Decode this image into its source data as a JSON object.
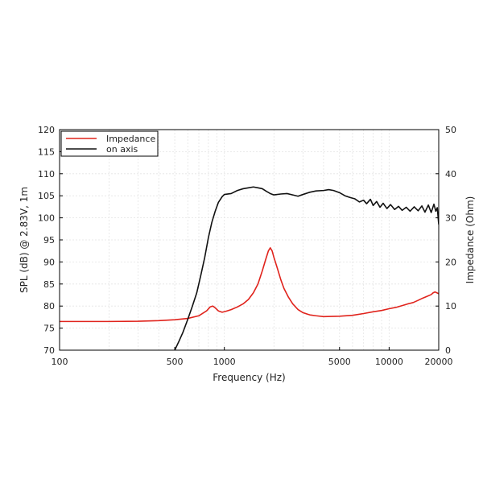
{
  "chart_data": {
    "type": "line",
    "xlabel": "Frequency (Hz)",
    "ylabel": "SPL (dB) @ 2.83V, 1m",
    "y2label": "Impedance (Ohm)",
    "xscale": "log",
    "xlim": [
      100,
      20000
    ],
    "ylim": [
      70,
      120
    ],
    "y2lim": [
      0,
      50
    ],
    "grid": true,
    "legend_position": "top-left",
    "xticks": [
      {
        "value": 100,
        "label": "100"
      },
      {
        "value": 500,
        "label": "500"
      },
      {
        "value": 1000,
        "label": "1000"
      },
      {
        "value": 5000,
        "label": "5000"
      },
      {
        "value": 10000,
        "label": "10000"
      },
      {
        "value": 20000,
        "label": "20000"
      }
    ],
    "yticks": [
      {
        "value": 70,
        "label": "70"
      },
      {
        "value": 75,
        "label": "75"
      },
      {
        "value": 80,
        "label": "80"
      },
      {
        "value": 85,
        "label": "85"
      },
      {
        "value": 90,
        "label": "90"
      },
      {
        "value": 95,
        "label": "95"
      },
      {
        "value": 100,
        "label": "100"
      },
      {
        "value": 105,
        "label": "105"
      },
      {
        "value": 110,
        "label": "110"
      },
      {
        "value": 115,
        "label": "115"
      },
      {
        "value": 120,
        "label": "120"
      }
    ],
    "y2ticks": [
      {
        "value": 0,
        "label": "0"
      },
      {
        "value": 10,
        "label": "10"
      },
      {
        "value": 20,
        "label": "20"
      },
      {
        "value": 30,
        "label": "30"
      },
      {
        "value": 40,
        "label": "40"
      },
      {
        "value": 50,
        "label": "50"
      }
    ],
    "series": [
      {
        "name": "Impedance",
        "axis": "right",
        "color": "#e0231c",
        "points": [
          [
            100,
            6.5
          ],
          [
            200,
            6.5
          ],
          [
            300,
            6.55
          ],
          [
            400,
            6.7
          ],
          [
            500,
            6.9
          ],
          [
            600,
            7.2
          ],
          [
            700,
            7.8
          ],
          [
            780,
            8.9
          ],
          [
            820,
            9.8
          ],
          [
            850,
            10.0
          ],
          [
            880,
            9.6
          ],
          [
            920,
            8.9
          ],
          [
            970,
            8.6
          ],
          [
            1020,
            8.8
          ],
          [
            1100,
            9.2
          ],
          [
            1200,
            9.8
          ],
          [
            1300,
            10.5
          ],
          [
            1400,
            11.5
          ],
          [
            1500,
            13
          ],
          [
            1600,
            15
          ],
          [
            1700,
            18
          ],
          [
            1780,
            20.5
          ],
          [
            1850,
            22.5
          ],
          [
            1900,
            23.2
          ],
          [
            1950,
            22.5
          ],
          [
            2000,
            21
          ],
          [
            2100,
            18.5
          ],
          [
            2200,
            16
          ],
          [
            2300,
            14
          ],
          [
            2450,
            12
          ],
          [
            2600,
            10.5
          ],
          [
            2800,
            9.2
          ],
          [
            3000,
            8.5
          ],
          [
            3300,
            8.0
          ],
          [
            3600,
            7.8
          ],
          [
            4000,
            7.6
          ],
          [
            5000,
            7.7
          ],
          [
            6000,
            7.9
          ],
          [
            7000,
            8.3
          ],
          [
            8000,
            8.7
          ],
          [
            9000,
            9.0
          ],
          [
            10000,
            9.4
          ],
          [
            11000,
            9.7
          ],
          [
            12000,
            10.1
          ],
          [
            13000,
            10.5
          ],
          [
            14000,
            10.8
          ],
          [
            15000,
            11.3
          ],
          [
            16000,
            11.8
          ],
          [
            17000,
            12.2
          ],
          [
            18000,
            12.6
          ],
          [
            18500,
            13.0
          ],
          [
            19000,
            13.2
          ],
          [
            19500,
            13.0
          ],
          [
            20000,
            12.8
          ]
        ]
      },
      {
        "name": "on axis",
        "axis": "left",
        "color": "#111111",
        "points": [
          [
            500,
            70
          ],
          [
            530,
            72
          ],
          [
            560,
            74
          ],
          [
            600,
            77
          ],
          [
            640,
            80
          ],
          [
            680,
            83
          ],
          [
            720,
            87
          ],
          [
            760,
            91
          ],
          [
            800,
            95.5
          ],
          [
            840,
            99
          ],
          [
            880,
            101.5
          ],
          [
            920,
            103.5
          ],
          [
            970,
            104.8
          ],
          [
            1000,
            105.3
          ],
          [
            1100,
            105.5
          ],
          [
            1200,
            106.2
          ],
          [
            1300,
            106.6
          ],
          [
            1400,
            106.8
          ],
          [
            1500,
            107.0
          ],
          [
            1600,
            106.8
          ],
          [
            1700,
            106.6
          ],
          [
            1800,
            106.0
          ],
          [
            1900,
            105.5
          ],
          [
            2000,
            105.2
          ],
          [
            2200,
            105.4
          ],
          [
            2400,
            105.5
          ],
          [
            2600,
            105.2
          ],
          [
            2800,
            104.9
          ],
          [
            3000,
            105.3
          ],
          [
            3300,
            105.8
          ],
          [
            3600,
            106.1
          ],
          [
            4000,
            106.2
          ],
          [
            4300,
            106.4
          ],
          [
            4600,
            106.2
          ],
          [
            5000,
            105.7
          ],
          [
            5400,
            105.0
          ],
          [
            5800,
            104.6
          ],
          [
            6200,
            104.3
          ],
          [
            6600,
            103.6
          ],
          [
            7000,
            104.0
          ],
          [
            7300,
            103.2
          ],
          [
            7700,
            104.2
          ],
          [
            8000,
            102.8
          ],
          [
            8400,
            103.7
          ],
          [
            8800,
            102.4
          ],
          [
            9200,
            103.3
          ],
          [
            9700,
            102.1
          ],
          [
            10200,
            103.0
          ],
          [
            10800,
            101.9
          ],
          [
            11400,
            102.6
          ],
          [
            12000,
            101.7
          ],
          [
            12700,
            102.4
          ],
          [
            13400,
            101.5
          ],
          [
            14200,
            102.5
          ],
          [
            15000,
            101.6
          ],
          [
            15800,
            102.7
          ],
          [
            16500,
            101.3
          ],
          [
            17300,
            102.9
          ],
          [
            18000,
            101.2
          ],
          [
            18700,
            103.1
          ],
          [
            19200,
            101.5
          ],
          [
            19600,
            102.3
          ],
          [
            20000,
            98.5
          ]
        ]
      }
    ]
  }
}
